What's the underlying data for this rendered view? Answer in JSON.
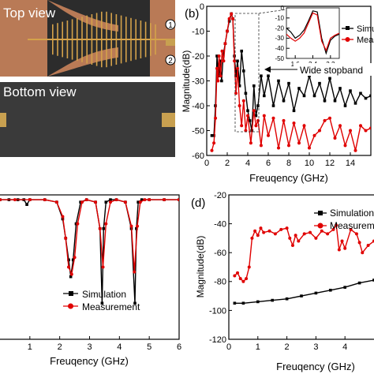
{
  "photos": {
    "top_label": "Top view",
    "bottom_label": "Bottom view",
    "port1": "1",
    "port2": "2",
    "board_color": "#b97a56",
    "substrate_color": "#2c2c2c",
    "trace_color": "#d4a24a"
  },
  "colors": {
    "simulation": "#000000",
    "measurement": "#e00000"
  },
  "chart_data": [
    {
      "id": "b",
      "panel_label": "(b)",
      "type": "line",
      "xlabel": "Freuqency (GHz)",
      "ylabel": "Magnitude(dB)",
      "xlim": [
        0,
        16
      ],
      "ylim": [
        -60,
        0
      ],
      "xticks": [
        0,
        2,
        4,
        6,
        8,
        10,
        12,
        14
      ],
      "yticks": [
        0,
        -10,
        -20,
        -30,
        -40,
        -50,
        -60
      ],
      "legend": {
        "placement": "top-right",
        "entries": [
          "Simulation",
          "Measurement"
        ]
      },
      "annotation": "Wide stopband",
      "series": [
        {
          "name": "Simulation",
          "color": "#000000",
          "x": [
            0.5,
            0.7,
            0.85,
            1.0,
            1.1,
            1.2,
            1.3,
            1.45,
            1.6,
            1.8,
            2.0,
            2.2,
            2.4,
            2.55,
            2.7,
            2.85,
            3.0,
            3.2,
            3.4,
            3.6,
            3.8,
            4.0,
            4.2,
            4.4,
            4.6,
            4.8,
            5.0,
            5.3,
            5.6,
            6.0,
            6.5,
            7.0,
            7.5,
            8.0,
            8.5,
            9.0,
            9.5,
            10.0,
            10.5,
            11.0,
            11.5,
            12.0,
            12.5,
            13.0,
            13.5,
            14.0,
            14.5,
            15.0,
            15.5,
            16.0
          ],
          "values": [
            -52,
            -52,
            -40,
            -20,
            -25,
            -28,
            -22,
            -30,
            -20,
            -15,
            -10,
            -6,
            -3,
            -5,
            -20,
            -28,
            -22,
            -32,
            -18,
            -26,
            -35,
            -42,
            -46,
            -50,
            -32,
            -44,
            -40,
            -28,
            -36,
            -28,
            -40,
            -30,
            -38,
            -31,
            -42,
            -33,
            -36,
            -28,
            -36,
            -31,
            -38,
            -29,
            -38,
            -33,
            -40,
            -34,
            -39,
            -35,
            -37,
            -36
          ]
        },
        {
          "name": "Measurement",
          "color": "#e00000",
          "x": [
            0.5,
            0.7,
            0.85,
            1.0,
            1.1,
            1.2,
            1.35,
            1.5,
            1.65,
            1.8,
            2.0,
            2.2,
            2.4,
            2.55,
            2.7,
            2.85,
            3.0,
            3.2,
            3.4,
            3.6,
            3.8,
            4.0,
            4.3,
            4.6,
            4.8,
            5.0,
            5.3,
            5.6,
            6.0,
            6.5,
            7.0,
            7.5,
            8.0,
            8.5,
            9.0,
            9.5,
            10.0,
            10.5,
            11.0,
            11.5,
            12.0,
            12.5,
            13.0,
            13.5,
            14.0,
            14.5,
            15.0,
            15.5,
            16.0
          ],
          "values": [
            -58,
            -55,
            -45,
            -25,
            -30,
            -20,
            -28,
            -18,
            -22,
            -15,
            -10,
            -5,
            -3,
            -5,
            -22,
            -35,
            -25,
            -40,
            -48,
            -38,
            -50,
            -44,
            -55,
            -42,
            -48,
            -46,
            -56,
            -44,
            -52,
            -45,
            -57,
            -46,
            -56,
            -47,
            -55,
            -48,
            -57,
            -52,
            -50,
            -46,
            -45,
            -53,
            -48,
            -56,
            -50,
            -58,
            -48,
            -50,
            -49
          ]
        }
      ],
      "inset": {
        "xlim": [
          1.2,
          3.6
        ],
        "ylim": [
          -50,
          0
        ],
        "xticks": [
          1.6,
          2.4,
          3.2
        ],
        "yticks": [
          0,
          -10,
          -20,
          -30,
          -40,
          -50
        ],
        "series": [
          {
            "name": "Simulation",
            "x": [
              1.2,
              1.4,
              1.6,
              1.8,
              2.0,
              2.2,
              2.4,
              2.6,
              2.8,
              3.0,
              3.2,
              3.4,
              3.6
            ],
            "values": [
              -20,
              -24,
              -30,
              -27,
              -22,
              -13,
              -3,
              -4,
              -30,
              -45,
              -32,
              -28,
              -26
            ]
          },
          {
            "name": "Measurement",
            "x": [
              1.2,
              1.4,
              1.6,
              1.8,
              2.0,
              2.2,
              2.4,
              2.6,
              2.8,
              3.0,
              3.2,
              3.4,
              3.6
            ],
            "values": [
              -26,
              -30,
              -33,
              -30,
              -25,
              -15,
              -5,
              -7,
              -33,
              -42,
              -30,
              -27,
              -25
            ]
          }
        ]
      }
    },
    {
      "id": "c",
      "panel_label": "",
      "type": "line",
      "xlabel": "Freuqency (GHz)",
      "ylabel": "",
      "xlim": [
        0,
        6
      ],
      "ylim": [
        -60,
        0
      ],
      "xticks": [
        1,
        2,
        3,
        4,
        5,
        6
      ],
      "legend": {
        "placement": "bottom-center",
        "entries": [
          "Simulation",
          "Measurement"
        ]
      },
      "series": [
        {
          "name": "Simulation",
          "color": "#000000",
          "x": [
            0,
            0.3,
            0.6,
            0.8,
            0.9,
            1.0,
            1.5,
            1.9,
            2.1,
            2.2,
            2.3,
            2.37,
            2.45,
            2.55,
            2.7,
            2.9,
            3.2,
            3.35,
            3.42,
            3.47,
            3.55,
            3.7,
            3.9,
            4.2,
            4.4,
            4.52,
            4.57,
            4.63,
            4.75,
            5.0,
            5.5,
            6.0
          ],
          "values": [
            -2,
            -2,
            -2,
            -2,
            -4,
            -2,
            -2,
            -3,
            -10,
            -18,
            -27,
            -34,
            -27,
            -12,
            -3,
            -2,
            -3,
            -14,
            -45,
            -14,
            -3,
            -2,
            -2,
            -3,
            -14,
            -45,
            -14,
            -3,
            -2,
            -2,
            -2,
            -2
          ]
        },
        {
          "name": "Measurement",
          "color": "#e00000",
          "x": [
            0,
            0.5,
            1.0,
            1.5,
            1.9,
            2.1,
            2.2,
            2.3,
            2.4,
            2.5,
            2.6,
            2.75,
            2.9,
            3.2,
            3.35,
            3.45,
            3.55,
            3.7,
            3.9,
            4.2,
            4.4,
            4.5,
            4.6,
            4.7,
            4.85,
            5.0,
            5.5,
            6.0
          ],
          "values": [
            -2,
            -2,
            -2,
            -2,
            -3,
            -9,
            -18,
            -30,
            -33,
            -26,
            -12,
            -3,
            -2,
            -3,
            -14,
            -30,
            -12,
            -3,
            -2,
            -3,
            -13,
            -32,
            -13,
            -3,
            -2,
            -2,
            -2,
            -2
          ]
        }
      ]
    },
    {
      "id": "d",
      "panel_label": "(d)",
      "type": "line",
      "xlabel": "Freuqency (GHz)",
      "ylabel": "Magnitude(dB)",
      "xlim": [
        0,
        5
      ],
      "ylim": [
        -120,
        -20
      ],
      "xticks": [
        0,
        1,
        2,
        3,
        4
      ],
      "yticks": [
        -20,
        -40,
        -60,
        -80,
        -100,
        -120
      ],
      "legend": {
        "placement": "top-right",
        "entries": [
          "Simulation",
          "Measurement"
        ]
      },
      "series": [
        {
          "name": "Simulation",
          "color": "#000000",
          "x": [
            0.2,
            0.5,
            1.0,
            1.5,
            2.0,
            2.5,
            3.0,
            3.5,
            4.0,
            4.5,
            5.0
          ],
          "values": [
            -95,
            -95,
            -94,
            -93,
            -92,
            -90,
            -88,
            -86,
            -84,
            -81,
            -79
          ]
        },
        {
          "name": "Measurement",
          "color": "#e00000",
          "x": [
            0.2,
            0.3,
            0.4,
            0.5,
            0.6,
            0.7,
            0.8,
            0.9,
            1.0,
            1.1,
            1.2,
            1.4,
            1.6,
            1.8,
            2.0,
            2.1,
            2.2,
            2.3,
            2.4,
            2.6,
            2.8,
            3.0,
            3.2,
            3.4,
            3.6,
            3.7,
            3.8,
            3.9,
            4.0,
            4.2,
            4.4,
            4.5,
            4.6,
            4.8,
            5.0
          ],
          "values": [
            -76,
            -74,
            -78,
            -80,
            -78,
            -70,
            -50,
            -45,
            -48,
            -43,
            -46,
            -45,
            -47,
            -44,
            -43,
            -50,
            -55,
            -48,
            -52,
            -47,
            -46,
            -50,
            -45,
            -47,
            -44,
            -41,
            -58,
            -52,
            -57,
            -44,
            -47,
            -53,
            -60,
            -55,
            -52
          ]
        }
      ]
    }
  ]
}
